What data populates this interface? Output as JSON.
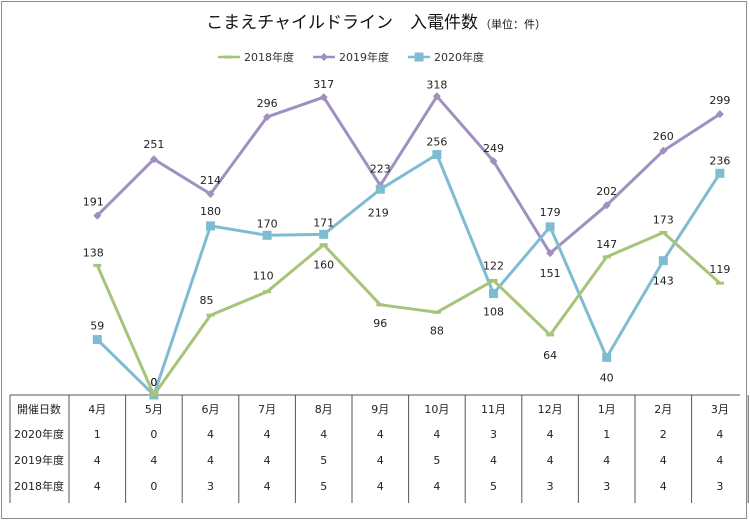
{
  "chart_data": {
    "type": "line",
    "title": "こまえチャイルドライン　入電件数",
    "title_unit": "（単位：件）",
    "categories": [
      "4月",
      "5月",
      "6月",
      "7月",
      "8月",
      "9月",
      "10月",
      "11月",
      "12月",
      "1月",
      "2月",
      "3月"
    ],
    "series": [
      {
        "name": "2018年度",
        "color": "#a6c47a",
        "marker": "dash",
        "values": [
          138,
          0,
          85,
          110,
          160,
          96,
          88,
          122,
          64,
          147,
          173,
          119
        ]
      },
      {
        "name": "2019年度",
        "color": "#a090c0",
        "marker": "diamond",
        "values": [
          191,
          251,
          214,
          296,
          317,
          223,
          318,
          249,
          151,
          202,
          260,
          299
        ]
      },
      {
        "name": "2020年度",
        "color": "#7fbcd2",
        "marker": "square",
        "values": [
          59,
          0,
          180,
          170,
          171,
          219,
          256,
          108,
          179,
          40,
          143,
          236
        ]
      }
    ],
    "ylim": [
      0,
      330
    ],
    "legend_position": "top",
    "grid": false,
    "table": {
      "header": "開催日数",
      "rows": [
        {
          "label": "2020年度",
          "values": [
            "1",
            "0",
            "4",
            "4",
            "4",
            "4",
            "4",
            "3",
            "4",
            "1",
            "2",
            "4"
          ]
        },
        {
          "label": "2019年度",
          "values": [
            "4",
            "4",
            "4",
            "4",
            "5",
            "4",
            "5",
            "4",
            "4",
            "4",
            "4",
            "4"
          ]
        },
        {
          "label": "2018年度",
          "values": [
            "4",
            "0",
            "3",
            "4",
            "5",
            "4",
            "4",
            "5",
            "3",
            "3",
            "4",
            "3"
          ]
        }
      ]
    }
  }
}
